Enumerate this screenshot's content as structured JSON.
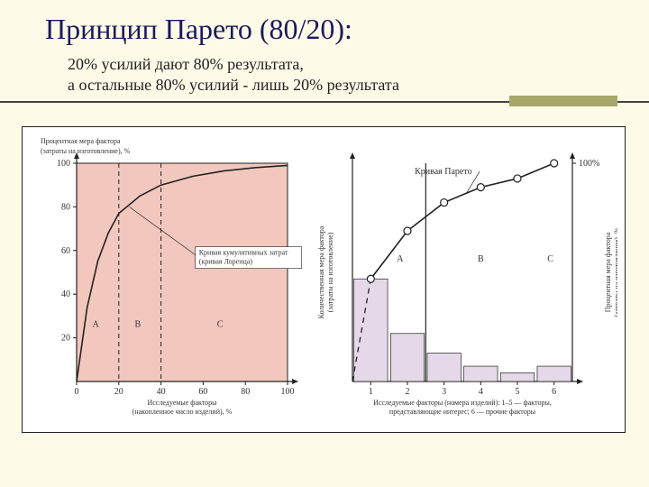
{
  "title": "Принцип Парето (80/20):",
  "subtitle_line1": "20% усилий дают 80% результата,",
  "subtitle_line2": "а остальные 80% усилий - лишь 20% результата",
  "chart_left": {
    "type": "line",
    "y_axis_title_line1": "Процентная мера фактора",
    "y_axis_title_line2": "(затраты на изготовление), %",
    "x_axis_title_line1": "Исследуемые факторы",
    "x_axis_title_line2": "(накопленное число изделий), %",
    "xlim": [
      0,
      100
    ],
    "ylim": [
      0,
      100
    ],
    "xticks": [
      0,
      20,
      40,
      60,
      80,
      100
    ],
    "yticks": [
      20,
      40,
      60,
      80,
      100
    ],
    "curve": [
      [
        0,
        0
      ],
      [
        5,
        34
      ],
      [
        10,
        55
      ],
      [
        15,
        68
      ],
      [
        20,
        77
      ],
      [
        30,
        85
      ],
      [
        40,
        90
      ],
      [
        55,
        94
      ],
      [
        70,
        96.5
      ],
      [
        85,
        98
      ],
      [
        100,
        99
      ]
    ],
    "vlines_x": [
      20,
      40
    ],
    "regions": [
      {
        "label": "A",
        "x": 9
      },
      {
        "label": "B",
        "x": 29
      },
      {
        "label": "C",
        "x": 68
      }
    ],
    "annotation_line1": "Кривая кумулятивных затрат",
    "annotation_line2": "(кривая Лоренца)",
    "plot_bg": "#f2c7bd",
    "axis_color": "#222222",
    "curve_color": "#222222",
    "dash_color": "#222222",
    "background": "#ffffff"
  },
  "chart_right": {
    "type": "combo",
    "y_axis_left_title_line1": "Количественная мера фактора",
    "y_axis_left_title_line2": "(затраты на изготовление)",
    "y_axis_right_title_line1": "Процентная мера фактора",
    "y_axis_right_title_line2": "(затраты на изготовление), %",
    "x_axis_title_line1": "Исследуемые факторы (номера изделий): 1–5 — факторы,",
    "x_axis_title_line2": "представляющие интерес; 6 — прочие факторы",
    "right_100": "100%",
    "curve_label": "Кривая Парето",
    "xlim": [
      0.5,
      6.5
    ],
    "xticks": [
      1,
      2,
      3,
      4,
      5,
      6
    ],
    "ylim": [
      0,
      100
    ],
    "bars": [
      {
        "x": 1,
        "h": 47
      },
      {
        "x": 2,
        "h": 22
      },
      {
        "x": 3,
        "h": 13
      },
      {
        "x": 4,
        "h": 7
      },
      {
        "x": 5,
        "h": 4
      },
      {
        "x": 6,
        "h": 7
      }
    ],
    "curve": [
      [
        1,
        47
      ],
      [
        2,
        69
      ],
      [
        3,
        82
      ],
      [
        4,
        89
      ],
      [
        5,
        93
      ],
      [
        6,
        100
      ]
    ],
    "dashed_line": [
      [
        0.5,
        0
      ],
      [
        1,
        47
      ],
      [
        2,
        69
      ]
    ],
    "vline_x": 2.5,
    "regions": [
      {
        "label": "A",
        "x": 1.8
      },
      {
        "label": "B",
        "x": 4.0
      },
      {
        "label": "C",
        "x": 5.9
      }
    ],
    "bar_color": "#e5d8e8",
    "curve_color": "#222222",
    "marker_fill": "#ffffff",
    "axis_color": "#222222",
    "vline_color": "#222222",
    "background": "#ffffff"
  }
}
